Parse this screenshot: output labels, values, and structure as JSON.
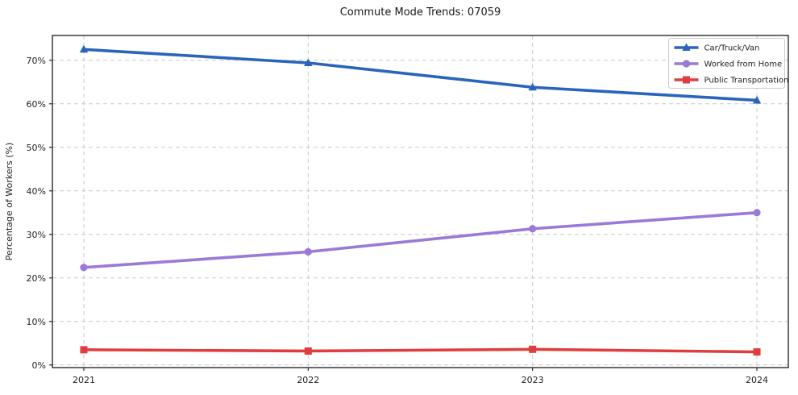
{
  "chart_data": {
    "type": "line",
    "title": "Commute Mode Trends: 07059",
    "xlabel": "",
    "ylabel": "Percentage of Workers (%)",
    "x": [
      2021,
      2022,
      2023,
      2024
    ],
    "x_tick_labels": [
      "2021",
      "2022",
      "2023",
      "2024"
    ],
    "series": [
      {
        "name": "Car/Truck/Van",
        "color": "#2b64bd",
        "marker": "triangle",
        "values": [
          72.5,
          69.4,
          63.8,
          60.8
        ]
      },
      {
        "name": "Worked from Home",
        "color": "#9b79d6",
        "marker": "circle",
        "values": [
          22.4,
          26.0,
          31.3,
          35.0
        ]
      },
      {
        "name": "Public Transportation",
        "color": "#e03e3e",
        "marker": "square",
        "values": [
          3.5,
          3.2,
          3.6,
          3.0
        ]
      }
    ],
    "yticks": [
      0,
      10,
      20,
      30,
      40,
      50,
      60,
      70
    ],
    "ytick_labels": [
      "0%",
      "10%",
      "20%",
      "30%",
      "40%",
      "50%",
      "60%",
      "70%"
    ],
    "ylim": [
      -0.6,
      75.7
    ],
    "xlim": [
      2020.86,
      2024.14
    ],
    "grid": true,
    "legend_position": "upper right",
    "colors": {
      "grid": "#c9c9c9",
      "spine": "#1a1a1a",
      "tick_label": "#1f1f1f",
      "legend_border": "#cccccc",
      "background": "#ffffff"
    }
  }
}
